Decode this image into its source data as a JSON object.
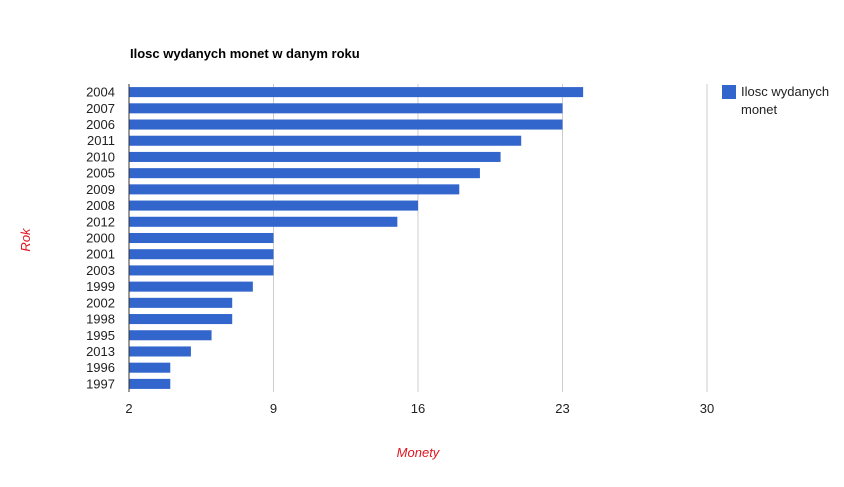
{
  "chart_data": {
    "type": "bar",
    "orientation": "horizontal",
    "title": "Ilosc wydanych monet w danym roku",
    "xlabel": "Monety",
    "ylabel": "Rok",
    "categories": [
      "2004",
      "2007",
      "2006",
      "2011",
      "2010",
      "2005",
      "2009",
      "2008",
      "2012",
      "2000",
      "2001",
      "2003",
      "1999",
      "2002",
      "1998",
      "1995",
      "2013",
      "1996",
      "1997"
    ],
    "series": [
      {
        "name": "Ilosc wydanych monet",
        "values": [
          24,
          23,
          23,
          21,
          20,
          19,
          18,
          16,
          15,
          9,
          9,
          9,
          8,
          7,
          7,
          6,
          5,
          4,
          4
        ]
      }
    ],
    "xlim": [
      2,
      30
    ],
    "xticks": [
      "2",
      "9",
      "16",
      "23",
      "30"
    ],
    "grid": true,
    "legend": "right",
    "colors": {
      "bar": "#3366cc",
      "grid": "#cccccc",
      "axis_title": "#e0141e"
    }
  }
}
